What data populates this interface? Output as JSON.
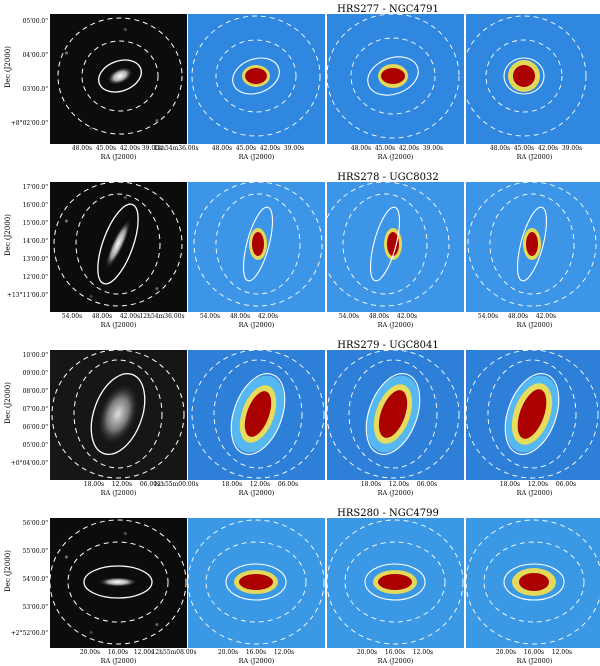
{
  "axis": {
    "dec_label": "Dec (J2000)",
    "ra_label": "RA (J2000)"
  },
  "colors": {
    "ir_background": "#2f87e0",
    "ir_core": "#8b0000",
    "optical_background": "#0c0c0c",
    "ellipse": "#ffffff"
  },
  "rows": [
    {
      "title": "HRS277 - NGC4791",
      "dec_ticks": [
        "05'00.0\"",
        "04'00.0\"",
        "03'00.0\"",
        "+8°02'00.0\""
      ],
      "ra_ticks_optical": [
        "48.00s",
        "45.00s",
        "42.00s",
        "39.00s",
        "12h54m36.00s"
      ],
      "ra_ticks_ir": [
        "48.00s",
        "45.00s",
        "42.00s",
        "39.00s"
      ]
    },
    {
      "title": "HRS278 - UGC8032",
      "dec_ticks": [
        "17'00.0\"",
        "16'00.0\"",
        "15'00.0\"",
        "14'00.0\"",
        "13'00.0\"",
        "12'00.0\"",
        "+13°11'00.0\""
      ],
      "ra_ticks_optical": [
        "54.00s",
        "48.00s",
        "42.00s",
        "12h54m36.00s"
      ],
      "ra_ticks_ir": [
        "54.00s",
        "48.00s",
        "42.00s"
      ]
    },
    {
      "title": "HRS279 - UGC8041",
      "dec_ticks": [
        "10'00.0\"",
        "09'00.0\"",
        "08'00.0\"",
        "07'00.0\"",
        "06'00.0\"",
        "05'00.0\"",
        "+0°04'00.0\""
      ],
      "ra_ticks_optical": [
        "18.00s",
        "12.00s",
        "06.00s",
        "12h55m00.00s"
      ],
      "ra_ticks_ir": [
        "18.00s",
        "12.00s",
        "06.00s"
      ]
    },
    {
      "title": "HRS280 - NGC4799",
      "dec_ticks": [
        "56'00.0\"",
        "55'00.0\"",
        "54'00.0\"",
        "53'00.0\"",
        "+2°52'00.0\""
      ],
      "ra_ticks_optical": [
        "20.00s",
        "16.00s",
        "12.00s",
        "12h55m08.00s"
      ],
      "ra_ticks_ir": [
        "20.00s",
        "16.00s",
        "12.00s"
      ]
    }
  ]
}
